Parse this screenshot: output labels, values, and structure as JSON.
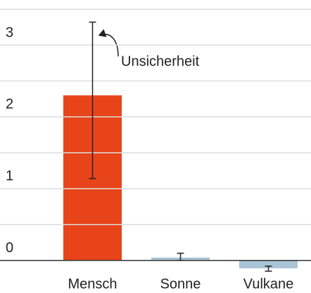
{
  "chart_data": {
    "type": "bar",
    "categories": [
      "Mensch",
      "Sonne",
      "Vulkane"
    ],
    "values": [
      2.3,
      0.04,
      -0.11
    ],
    "error_low": [
      1.14,
      0.0,
      -0.15
    ],
    "error_high": [
      3.32,
      0.1,
      -0.08
    ],
    "colors": [
      "#e8441a",
      "#a9c4d6",
      "#a9c4d6"
    ],
    "ylim": [
      -0.15,
      3.55
    ],
    "yticks": [
      0,
      1,
      2,
      3
    ],
    "minor_yticks": [
      0.5,
      1.5,
      2.5,
      3.5
    ],
    "grid": true,
    "annotation": "Unsicherheit"
  }
}
